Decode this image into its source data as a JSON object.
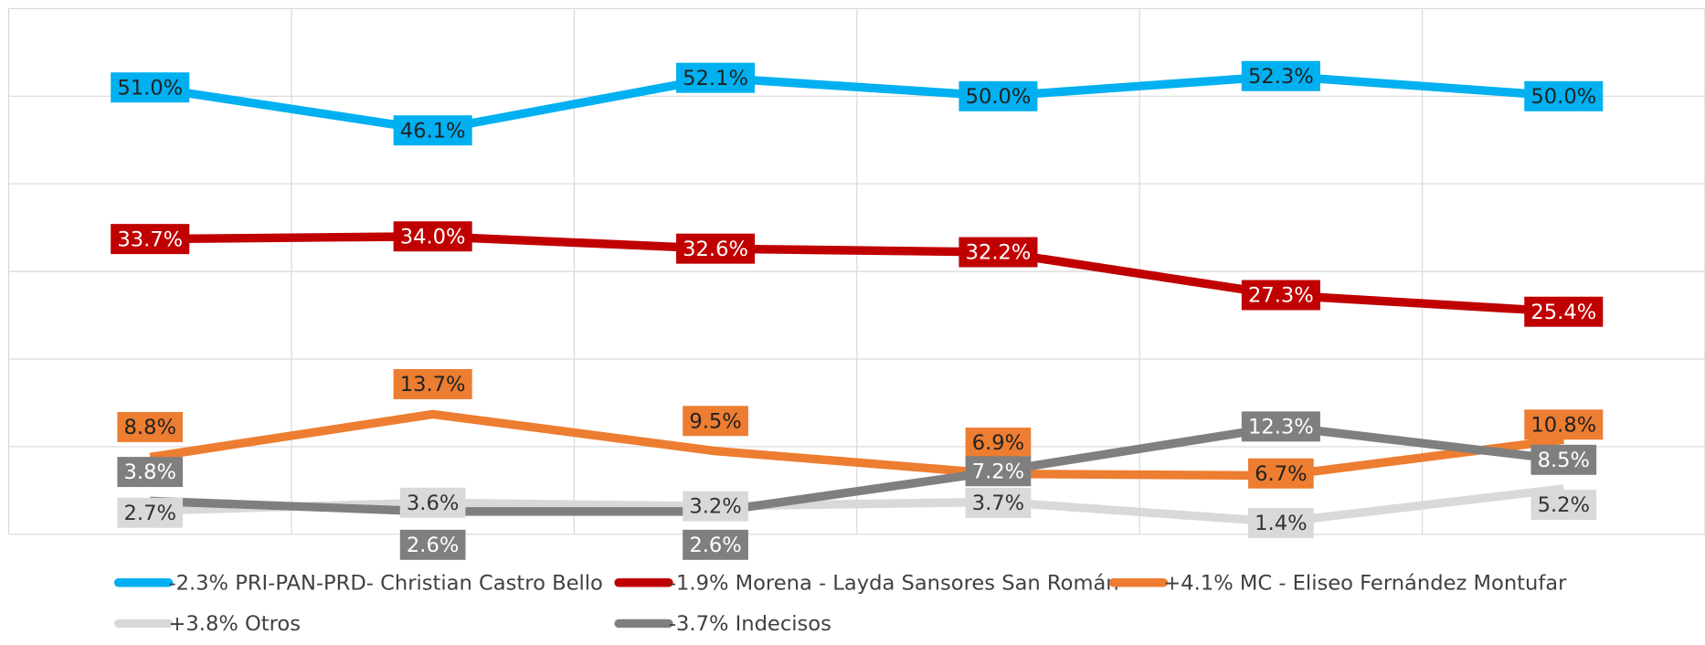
{
  "chart_data": {
    "type": "line",
    "categories": [
      null,
      null,
      null,
      null,
      null,
      null
    ],
    "ylim": [
      0,
      60
    ],
    "yticks": [
      0,
      10,
      20,
      30,
      40,
      50,
      60
    ],
    "grid": true,
    "series": [
      {
        "name": "-2.3% PRI-PAN-PRD- Christian Castro Bello",
        "color": "#00b0f0",
        "values": [
          51.0,
          46.1,
          52.1,
          50.0,
          52.3,
          50.0
        ],
        "value_labels": [
          "51.0%",
          "46.1%",
          "52.1%",
          "50.0%",
          "52.3%",
          "50.0%"
        ]
      },
      {
        "name": "-1.9% Morena - Layda Sansores San Román",
        "color": "#c00000",
        "values": [
          33.7,
          34.0,
          32.6,
          32.2,
          27.3,
          25.4
        ],
        "value_labels": [
          "33.7%",
          "34.0%",
          "32.6%",
          "32.2%",
          "27.3%",
          "25.4%"
        ]
      },
      {
        "name": "+4.1% MC - Eliseo Fernández Montufar",
        "color": "#ed7d31",
        "values": [
          8.8,
          13.7,
          9.5,
          6.9,
          6.7,
          10.8
        ],
        "value_labels": [
          "8.8%",
          "13.7%",
          "9.5%",
          "6.9%",
          "6.7%",
          "10.8%"
        ]
      },
      {
        "name": "+3.8% Otros",
        "color": "#d9d9d9",
        "values": [
          2.7,
          3.6,
          3.2,
          3.7,
          1.4,
          5.2
        ],
        "value_labels": [
          "2.7%",
          "3.6%",
          "3.2%",
          "3.7%",
          "1.4%",
          "5.2%"
        ]
      },
      {
        "name": "-3.7% Indecisos",
        "color": "#7f7f7f",
        "values": [
          3.8,
          2.6,
          2.6,
          7.2,
          12.3,
          8.5
        ],
        "value_labels": [
          "3.8%",
          "2.6%",
          "2.6%",
          "7.2%",
          "12.3%",
          "8.5%"
        ]
      }
    ]
  }
}
